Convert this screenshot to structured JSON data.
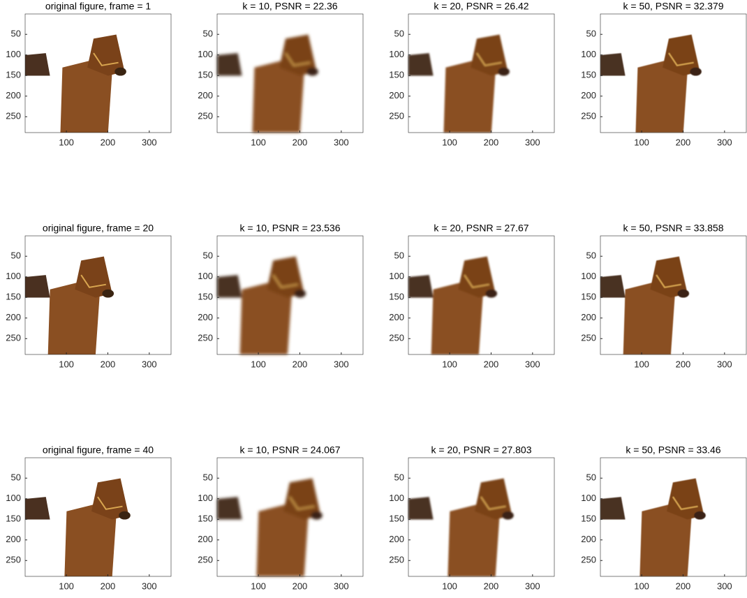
{
  "chart_data": [
    {
      "type": "image",
      "title": "original figure, frame = 1",
      "xlim": [
        0.5,
        352.5
      ],
      "ylim": [
        0.5,
        288.5
      ],
      "yreverse": true,
      "xticks": [
        100,
        200,
        300
      ],
      "yticks": [
        50,
        100,
        150,
        200,
        250
      ]
    },
    {
      "type": "image",
      "title": "k = 10, PSNR = 22.36",
      "xlim": [
        0.5,
        352.5
      ],
      "ylim": [
        0.5,
        288.5
      ],
      "yreverse": true,
      "xticks": [
        100,
        200,
        300
      ],
      "yticks": [
        50,
        100,
        150,
        200,
        250
      ]
    },
    {
      "type": "image",
      "title": "k = 20, PSNR = 26.42",
      "xlim": [
        0.5,
        352.5
      ],
      "ylim": [
        0.5,
        288.5
      ],
      "yreverse": true,
      "xticks": [
        100,
        200,
        300
      ],
      "yticks": [
        50,
        100,
        150,
        200,
        250
      ]
    },
    {
      "type": "image",
      "title": "k = 50, PSNR = 32.379",
      "xlim": [
        0.5,
        352.5
      ],
      "ylim": [
        0.5,
        288.5
      ],
      "yreverse": true,
      "xticks": [
        100,
        200,
        300
      ],
      "yticks": [
        50,
        100,
        150,
        200,
        250
      ]
    },
    {
      "type": "image",
      "title": "original figure, frame = 20",
      "xlim": [
        0.5,
        352.5
      ],
      "ylim": [
        0.5,
        288.5
      ],
      "yreverse": true,
      "xticks": [
        100,
        200,
        300
      ],
      "yticks": [
        50,
        100,
        150,
        200,
        250
      ]
    },
    {
      "type": "image",
      "title": "k = 10, PSNR = 23.536",
      "xlim": [
        0.5,
        352.5
      ],
      "ylim": [
        0.5,
        288.5
      ],
      "yreverse": true,
      "xticks": [
        100,
        200,
        300
      ],
      "yticks": [
        50,
        100,
        150,
        200,
        250
      ]
    },
    {
      "type": "image",
      "title": "k = 20, PSNR = 27.67",
      "xlim": [
        0.5,
        352.5
      ],
      "ylim": [
        0.5,
        288.5
      ],
      "yreverse": true,
      "xticks": [
        100,
        200,
        300
      ],
      "yticks": [
        50,
        100,
        150,
        200,
        250
      ]
    },
    {
      "type": "image",
      "title": "k = 50, PSNR = 33.858",
      "xlim": [
        0.5,
        352.5
      ],
      "ylim": [
        0.5,
        288.5
      ],
      "yreverse": true,
      "xticks": [
        100,
        200,
        300
      ],
      "yticks": [
        50,
        100,
        150,
        200,
        250
      ]
    },
    {
      "type": "image",
      "title": "original figure, frame = 40",
      "xlim": [
        0.5,
        352.5
      ],
      "ylim": [
        0.5,
        288.5
      ],
      "yreverse": true,
      "xticks": [
        100,
        200,
        300
      ],
      "yticks": [
        50,
        100,
        150,
        200,
        250
      ]
    },
    {
      "type": "image",
      "title": "k = 10, PSNR = 24.067",
      "xlim": [
        0.5,
        352.5
      ],
      "ylim": [
        0.5,
        288.5
      ],
      "yreverse": true,
      "xticks": [
        100,
        200,
        300
      ],
      "yticks": [
        50,
        100,
        150,
        200,
        250
      ]
    },
    {
      "type": "image",
      "title": "k = 20, PSNR = 27.803",
      "xlim": [
        0.5,
        352.5
      ],
      "ylim": [
        0.5,
        288.5
      ],
      "yreverse": true,
      "xticks": [
        100,
        200,
        300
      ],
      "yticks": [
        50,
        100,
        150,
        200,
        250
      ]
    },
    {
      "type": "image",
      "title": "k = 50, PSNR = 33.46",
      "xlim": [
        0.5,
        352.5
      ],
      "ylim": [
        0.5,
        288.5
      ],
      "yreverse": true,
      "xticks": [
        100,
        200,
        300
      ],
      "yticks": [
        50,
        100,
        150,
        200,
        250
      ]
    }
  ]
}
